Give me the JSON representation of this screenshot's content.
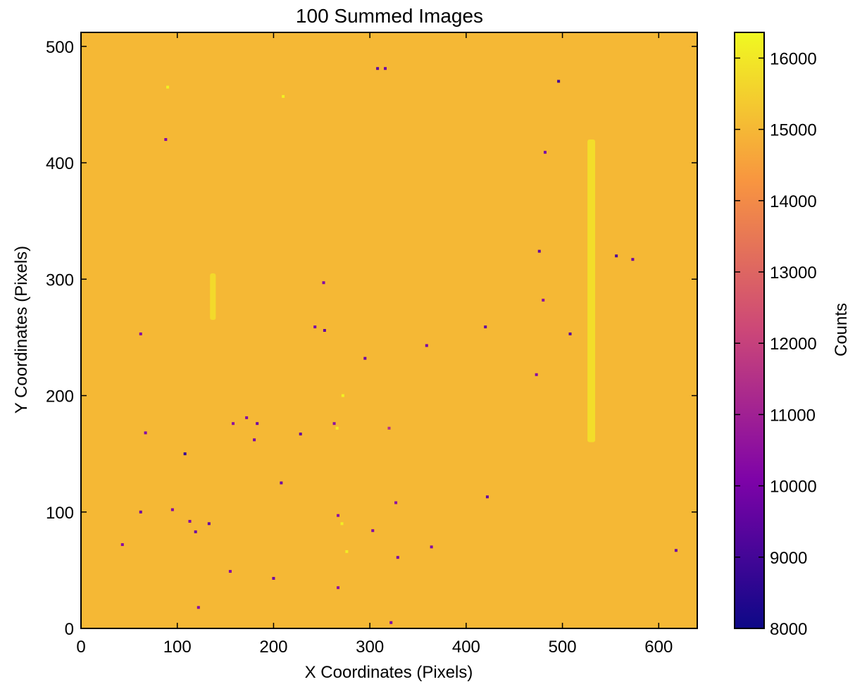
{
  "chart_data": {
    "type": "heatmap",
    "title": "100 Summed Images",
    "x_label": "X Coordinates (Pixels)",
    "y_label": "Y Coordinates (Pixels)",
    "colorbar_label": "Counts",
    "colormap": "plasma",
    "xlim": [
      0,
      640
    ],
    "ylim": [
      0,
      512
    ],
    "clim": [
      8000,
      16360
    ],
    "xticks": [
      0,
      100,
      200,
      300,
      400,
      500,
      600
    ],
    "yticks": [
      0,
      100,
      200,
      300,
      400,
      500
    ],
    "cticks": [
      8000,
      9000,
      10000,
      11000,
      12000,
      13000,
      14000,
      15000,
      16000
    ],
    "field_value": 15000,
    "streaks": [
      {
        "x": [
          526,
          534
        ],
        "y": [
          160,
          420
        ],
        "value": 15900
      },
      {
        "x": [
          134,
          140
        ],
        "y": [
          265,
          305
        ],
        "value": 15800
      }
    ],
    "points": {
      "x": [
        308,
        316,
        88,
        496,
        482,
        476,
        556,
        573,
        252,
        480,
        243,
        253,
        62,
        420,
        508,
        359,
        295,
        473,
        263,
        320,
        172,
        183,
        158,
        67,
        228,
        180,
        108,
        208,
        95,
        62,
        327,
        422,
        267,
        113,
        133,
        119,
        303,
        43,
        364,
        618,
        329,
        155,
        200,
        267,
        322,
        122,
        90,
        210,
        266,
        272,
        271,
        276
      ],
      "y": [
        481,
        481,
        420,
        470,
        409,
        324,
        320,
        317,
        297,
        282,
        259,
        256,
        253,
        259,
        253,
        243,
        232,
        218,
        176,
        172,
        181,
        176,
        176,
        168,
        167,
        162,
        150,
        125,
        102,
        100,
        108,
        113,
        97,
        92,
        90,
        83,
        84,
        72,
        70,
        67,
        61,
        49,
        43,
        35,
        5,
        18,
        465,
        457,
        172,
        200,
        90,
        66
      ],
      "values": [
        9500,
        9800,
        10200,
        9000,
        10000,
        9600,
        9200,
        9800,
        10200,
        10500,
        10000,
        9600,
        10200,
        9600,
        9400,
        10000,
        9800,
        10300,
        10500,
        11500,
        10200,
        9800,
        10500,
        10200,
        9600,
        10000,
        8800,
        9800,
        10200,
        9800,
        10500,
        9600,
        10500,
        10200,
        9600,
        9800,
        10200,
        10300,
        10200,
        9800,
        10000,
        10300,
        9800,
        10500,
        10000,
        10300,
        16200,
        16200,
        16200,
        16200,
        16100,
        16100
      ]
    },
    "grid": false
  }
}
